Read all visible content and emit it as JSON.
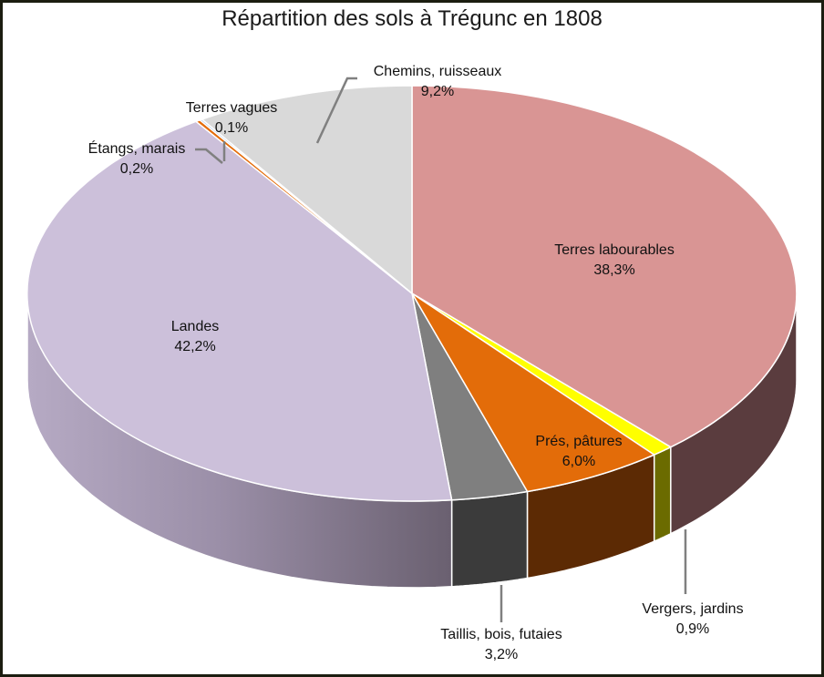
{
  "chart_data": {
    "type": "pie",
    "subtype": "3d-pie",
    "title": "Répartition des sols à Trégunc en 1808",
    "start_angle_deg": 0,
    "direction": "clockwise",
    "slices": [
      {
        "label": "Terres labourables",
        "value": 38.3,
        "display": "38,3%",
        "color": "#d99594",
        "side_color": "#5a3c3e"
      },
      {
        "label": "Vergers, jardins",
        "value": 0.9,
        "display": "0,9%",
        "color": "#ffff00",
        "side_color": "#6b6b00"
      },
      {
        "label": "Prés, pâtures",
        "value": 6.0,
        "display": "6,0%",
        "color": "#e36c09",
        "side_color": "#5c2a04"
      },
      {
        "label": "Taillis, bois, futaies",
        "value": 3.2,
        "display": "3,2%",
        "color": "#7f7f7f",
        "side_color": "#3b3b3b"
      },
      {
        "label": "Landes",
        "value": 42.2,
        "display": "42,2%",
        "color": "#ccc0da",
        "side_color": "#8d8298"
      },
      {
        "label": "Étangs, marais",
        "value": 0.2,
        "display": "0,2%",
        "color": "#e46c0a",
        "side_color": "#5c2a04"
      },
      {
        "label": "Terres vagues",
        "value": 0.1,
        "display": "0,1%",
        "color": "#8db3e2",
        "side_color": "#44546a"
      },
      {
        "label": "Chemins, ruisseaux",
        "value": 9.2,
        "display": "9,2%",
        "color": "#d9d9d9",
        "side_color": "#7f7f7f"
      }
    ],
    "legend": "none",
    "data_labels": "category name and percentage"
  },
  "labels": {
    "terres_labourables": {
      "name": "Terres labourables",
      "pct": "38,3%"
    },
    "vergers": {
      "name": "Vergers, jardins",
      "pct": "0,9%"
    },
    "pres": {
      "name": "Prés, pâtures",
      "pct": "6,0%"
    },
    "taillis": {
      "name": "Taillis, bois, futaies",
      "pct": "3,2%"
    },
    "landes": {
      "name": "Landes",
      "pct": "42,2%"
    },
    "etangs": {
      "name": "Étangs, marais",
      "pct": "0,2%"
    },
    "terres_vagues": {
      "name": "Terres vagues",
      "pct": "0,1%"
    },
    "chemins": {
      "name": "Chemins, ruisseaux",
      "pct": "9,2%"
    }
  }
}
